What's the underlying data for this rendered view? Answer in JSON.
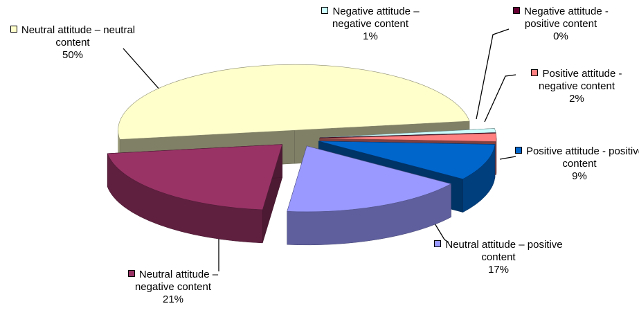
{
  "chart_data": {
    "type": "pie3d",
    "categories": [
      "Neutral attitude – neutral content",
      "Negative attitude – negative content",
      "Negative attitude - positive content",
      "Positive attitude - negative content",
      "Positive attitude - positive content",
      "Neutral attitude – positive content",
      "Neutral attitude – negative content"
    ],
    "values": [
      50,
      1,
      0,
      2,
      9,
      17,
      21
    ],
    "value_labels": [
      "50%",
      "1%",
      "0%",
      "2%",
      "9%",
      "17%",
      "21%"
    ],
    "colors": [
      "#ffffcc",
      "#ccffff",
      "#660033",
      "#ff8080",
      "#0066cc",
      "#9999ff",
      "#993366"
    ]
  }
}
